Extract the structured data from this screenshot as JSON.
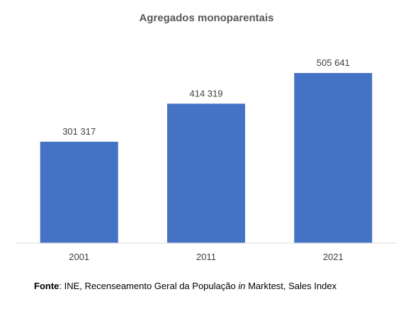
{
  "chart_data": {
    "type": "bar",
    "title": "Agregados monoparentais",
    "categories": [
      "2001",
      "2011",
      "2021"
    ],
    "values": [
      301317,
      414319,
      505641
    ],
    "value_labels": [
      "301 317",
      "414 319",
      "505 641"
    ],
    "xlabel": "",
    "ylabel": "",
    "ylim": [
      0,
      505641
    ],
    "grid": false,
    "legend": "none",
    "bar_color": "#4472C4"
  },
  "source": {
    "label": "Fonte",
    "separator": ": ",
    "text_before": "INE, Recenseamento Geral da População ",
    "italic_word": "in",
    "text_after": " Marktest, Sales Index"
  }
}
